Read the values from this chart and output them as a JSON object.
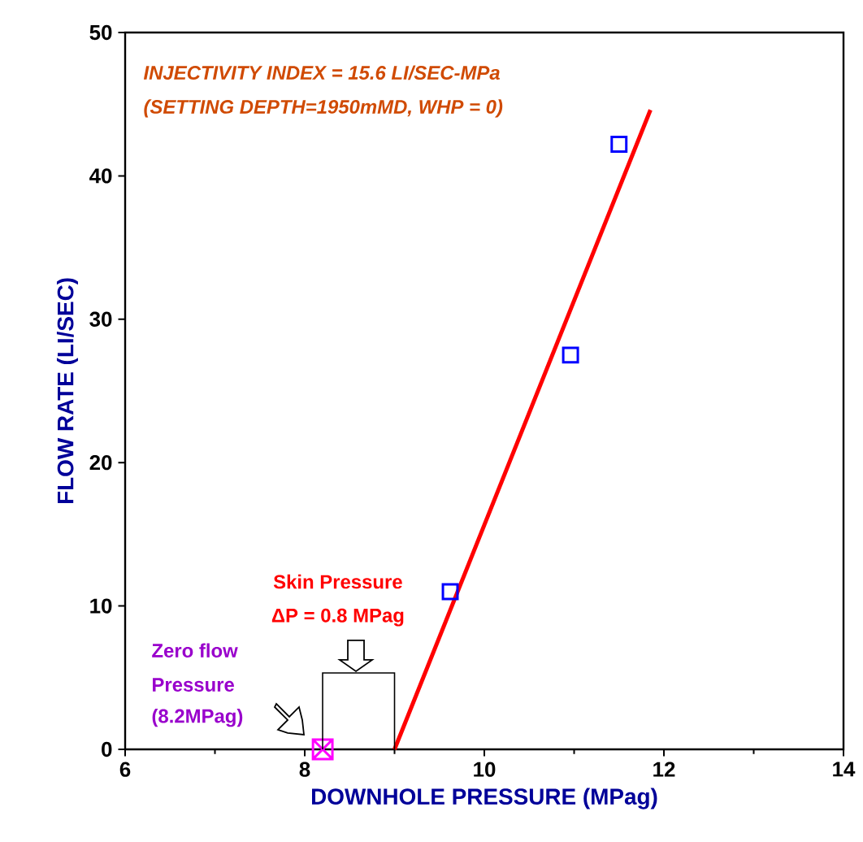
{
  "chart_data": {
    "type": "scatter",
    "xlabel": "DOWNHOLE PRESSURE  (MPag)",
    "ylabel": "FLOW RATE (LI/SEC)",
    "xlim": [
      6,
      14
    ],
    "ylim": [
      0,
      50
    ],
    "xticks": [
      6,
      8,
      10,
      12,
      14
    ],
    "yticks": [
      0,
      10,
      20,
      30,
      40,
      50
    ],
    "grid": false,
    "series": [
      {
        "marker": "square",
        "color": "#0000ff",
        "x": [
          9.62,
          10.96,
          11.5
        ],
        "values": [
          11.0,
          27.5,
          42.2
        ]
      },
      {
        "marker": "cross",
        "color": "#ff00ff",
        "x": [
          8.2
        ],
        "values": [
          0
        ]
      },
      {
        "type": "line",
        "marker": "none",
        "color": "#ff0000",
        "x": [
          9.0,
          11.85
        ],
        "values": [
          0,
          44.6
        ]
      }
    ],
    "annotations": [
      "INJECTIVITY INDEX = 15.6 LI/SEC-MPa",
      "(SETTING DEPTH=1950mMD, WHP = 0)",
      "Skin Pressure",
      "ΔP = 0.8 MPag",
      "Zero flow",
      "Pressure",
      "(8.2MPag)"
    ]
  }
}
